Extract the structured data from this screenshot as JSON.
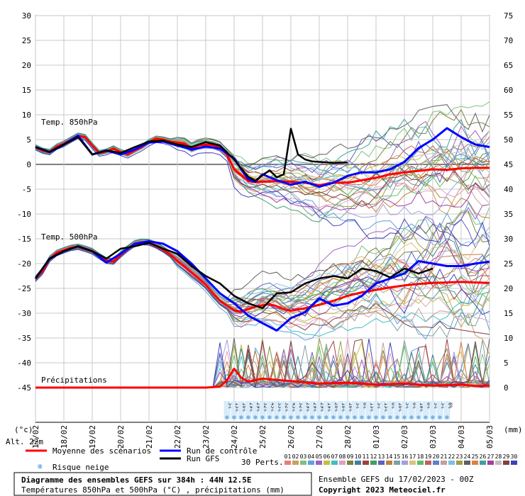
{
  "chart_data": {
    "type": "line",
    "title": "Diagramme des ensembles GEFS sur 384h : 44N 12.5E",
    "subtitle": "Températures 850hPa et 500hPa (°C) , précipitations (mm)",
    "run_info": "Ensemble GEFS du 17/02/2023 - 00Z",
    "copyright": "Copyright 2023 Meteociel.fr",
    "altitude": "Alt. 22m",
    "left_unit": "(°c)",
    "right_unit": "(mm)",
    "left_ticks": [
      30,
      25,
      20,
      15,
      10,
      5,
      0,
      -5,
      -10,
      -15,
      -20,
      -25,
      -30,
      -35,
      -40,
      -45
    ],
    "right_ticks": [
      75,
      70,
      65,
      60,
      55,
      50,
      45,
      40,
      35,
      30,
      25,
      20,
      15,
      10,
      5,
      0
    ],
    "ylim": [
      -45,
      30
    ],
    "precip_ylim": [
      0,
      75
    ],
    "x_dates": [
      "17/02",
      "18/02",
      "19/02",
      "20/02",
      "21/02",
      "22/02",
      "23/02",
      "24/02",
      "25/02",
      "26/02",
      "27/02",
      "28/02",
      "01/03",
      "02/03",
      "03/03",
      "04/03",
      "05/03"
    ],
    "panel_labels": {
      "t850": "Temp. 850hPa",
      "t500": "Temp. 500hPa",
      "precip": "Précipitations"
    },
    "snow_risk_pct": [
      "3%",
      "13%",
      "16%",
      "29%",
      "29%",
      "32%",
      "45%",
      "35%",
      "32%",
      "45%",
      "32%",
      "29%",
      "29%",
      "29%",
      "19%",
      "26%",
      "16%",
      "16%",
      "3%",
      "6%",
      "13%",
      "3%",
      "13%",
      "6%",
      "16%",
      "3%",
      "6%",
      "10%",
      "6%",
      "3%",
      "3%",
      "6%"
    ],
    "legend": {
      "mean": "Moyenne des scénarios",
      "control": "Run de contrôle",
      "gfs": "Run GFS",
      "snow": "Risque neige",
      "perts_label": "30 Perts.",
      "pert_numbers": [
        "01",
        "02",
        "03",
        "04",
        "05",
        "06",
        "07",
        "08",
        "09",
        "10",
        "11",
        "12",
        "13",
        "14",
        "15",
        "16",
        "17",
        "18",
        "19",
        "20",
        "21",
        "22",
        "23",
        "24",
        "25",
        "26",
        "27",
        "28",
        "29",
        "30"
      ],
      "pert_colors": [
        "#e08080",
        "#c8a060",
        "#80c080",
        "#60a0e0",
        "#a060c0",
        "#c0c040",
        "#40c0c0",
        "#e0a0c0",
        "#808040",
        "#4080a0",
        "#a04040",
        "#40a060",
        "#6060c0",
        "#c08040",
        "#80a0a0",
        "#a0a0e0",
        "#e0c080",
        "#60c060",
        "#c06060",
        "#6080c0",
        "#c0a0a0",
        "#80c0e0",
        "#a0a040",
        "#606060",
        "#e08040",
        "#40a0a0",
        "#a040a0",
        "#c0c0c0",
        "#804040",
        "#4040c0"
      ],
      "mean_color": "#ff0000",
      "control_color": "#0000ff",
      "gfs_color": "#000000"
    },
    "series": [
      {
        "name": "Moyenne des scénarios",
        "panel": "t850",
        "x": [
          0,
          0.25,
          0.5,
          0.75,
          1,
          1.25,
          1.5,
          1.75,
          2,
          2.25,
          2.5,
          2.75,
          3,
          3.25,
          3.5,
          3.75,
          4,
          4.25,
          4.5,
          4.75,
          5,
          5.25,
          5.5,
          5.75,
          6,
          6.25,
          6.5,
          6.75,
          7,
          7.25,
          7.5,
          7.75,
          8,
          8.5,
          9,
          9.5,
          10,
          10.5,
          11,
          11.5,
          12,
          12.5,
          13,
          13.5,
          14,
          14.5,
          15,
          15.5,
          16
        ],
        "y": [
          3.5,
          2.8,
          2.5,
          3.6,
          4.2,
          5,
          5.8,
          5.5,
          3.8,
          2.3,
          2.6,
          3.2,
          2.5,
          2,
          2.8,
          3.5,
          4.5,
          5.2,
          5,
          4.6,
          4.4,
          4.2,
          3.2,
          3.8,
          4,
          3.9,
          3.4,
          2,
          -1,
          -2.2,
          -3.4,
          -3.6,
          -3.5,
          -3.4,
          -3.5,
          -3.7,
          -4.2,
          -3.7,
          -3.7,
          -3.2,
          -2.7,
          -2,
          -1.6,
          -1.3,
          -1,
          -1.1,
          -0.8,
          -0.7,
          -0.7
        ]
      },
      {
        "name": "Run de contrôle",
        "panel": "t850",
        "x": [
          0,
          0.5,
          1,
          1.5,
          2,
          2.5,
          3,
          3.5,
          4,
          4.5,
          5,
          5.5,
          6,
          6.5,
          7,
          7.25,
          7.5,
          7.75,
          8,
          8.5,
          9,
          9.5,
          10,
          10.5,
          11,
          11.5,
          12,
          12.5,
          13,
          13.5,
          14,
          14.5,
          15,
          15.5,
          16
        ],
        "y": [
          3.5,
          2.5,
          4,
          5.8,
          2,
          2.8,
          2,
          3,
          4.4,
          4.6,
          3.8,
          3,
          3.6,
          3.2,
          1.2,
          -1,
          -3,
          -3.5,
          -2,
          -3.2,
          -4.1,
          -3.5,
          -4.5,
          -3.7,
          -2.3,
          -1.6,
          -1.6,
          -1,
          0.5,
          3.3,
          5,
          7.3,
          5.5,
          4,
          3.5
        ]
      },
      {
        "name": "Run GFS",
        "panel": "t850",
        "x": [
          0,
          0.5,
          1,
          1.5,
          2,
          2.5,
          3,
          3.5,
          4,
          4.5,
          5,
          5.5,
          6,
          6.5,
          7,
          7.25,
          7.5,
          7.75,
          8,
          8.25,
          8.5,
          8.75,
          9,
          9.25,
          9.5,
          9.75,
          10,
          10.5,
          11
        ],
        "y": [
          3.5,
          2.5,
          4,
          5.5,
          2,
          2.8,
          2.3,
          3.5,
          4.6,
          4.8,
          4,
          3.5,
          4.5,
          3.8,
          1,
          -0.8,
          -2.5,
          -3.3,
          -2.2,
          -1.2,
          -2.6,
          -2,
          7.2,
          2,
          1,
          0.6,
          0.5,
          0.3,
          0.4
        ]
      },
      {
        "name": "Moyenne des scénarios",
        "panel": "t500",
        "x": [
          0,
          0.25,
          0.5,
          0.75,
          1,
          1.25,
          1.5,
          1.75,
          2,
          2.25,
          2.5,
          2.75,
          3,
          3.25,
          3.5,
          3.75,
          4,
          4.25,
          4.5,
          4.75,
          5,
          5.25,
          5.5,
          5.75,
          6,
          6.25,
          6.5,
          6.75,
          7,
          7.25,
          7.5,
          7.75,
          8,
          8.25,
          8.5,
          8.75,
          9,
          9.5,
          10,
          10.5,
          11,
          11.5,
          12,
          12.5,
          13,
          13.5,
          14,
          14.5,
          15,
          15.5,
          16
        ],
        "y": [
          -23,
          -21.5,
          -19,
          -17.8,
          -17.3,
          -16.8,
          -16.6,
          -17,
          -17.5,
          -18.5,
          -19.4,
          -19.6,
          -18.2,
          -17,
          -16,
          -15.7,
          -15.8,
          -16.4,
          -17.2,
          -18.2,
          -19.5,
          -20.6,
          -21.8,
          -23,
          -24.3,
          -26,
          -27.5,
          -28.5,
          -29.4,
          -29.7,
          -29.2,
          -28.7,
          -28.4,
          -28.2,
          -28.6,
          -29.2,
          -29.5,
          -29,
          -28.3,
          -27.5,
          -26.5,
          -25.8,
          -25.3,
          -24.8,
          -24.4,
          -24.1,
          -23.9,
          -23.8,
          -23.7,
          -23.8,
          -23.9
        ]
      },
      {
        "name": "Run de contrôle",
        "panel": "t500",
        "x": [
          0,
          0.5,
          1,
          1.5,
          2,
          2.5,
          3,
          3.5,
          4,
          4.5,
          5,
          5.5,
          6,
          6.5,
          7,
          7.5,
          8,
          8.5,
          9,
          9.5,
          10,
          10.5,
          11,
          11.5,
          12,
          12.5,
          13,
          13.5,
          14,
          14.5,
          15,
          15.5,
          16
        ],
        "y": [
          -23,
          -19,
          -17.5,
          -16.5,
          -17.5,
          -19.8,
          -18,
          -16,
          -15.5,
          -16,
          -17.5,
          -20,
          -23,
          -26,
          -28,
          -30.5,
          -32,
          -33.5,
          -31,
          -29.8,
          -27,
          -28.5,
          -28,
          -26.5,
          -24,
          -23,
          -22,
          -19.5,
          -20,
          -20.5,
          -20.5,
          -20,
          -19.6
        ]
      },
      {
        "name": "Run GFS",
        "panel": "t500",
        "x": [
          0,
          0.5,
          1,
          1.5,
          2,
          2.5,
          3,
          3.5,
          4,
          4.5,
          5,
          5.5,
          6,
          6.5,
          7,
          7.5,
          8,
          8.5,
          9,
          9.5,
          10,
          10.5,
          11,
          11.5,
          12,
          12.5,
          13,
          13.5,
          14
        ],
        "y": [
          -23,
          -19,
          -17.5,
          -16.5,
          -17.5,
          -19,
          -17,
          -16.5,
          -15.8,
          -17,
          -18,
          -20.5,
          -22.5,
          -24,
          -26.5,
          -28,
          -29,
          -26,
          -25.8,
          -24,
          -23,
          -22.5,
          -23,
          -21,
          -21.5,
          -22.8,
          -21,
          -22,
          -21
        ]
      },
      {
        "name": "Moyenne des scénarios",
        "panel": "precip",
        "x": [
          0,
          1,
          2,
          3,
          4,
          5,
          6,
          6.5,
          6.75,
          7,
          7.25,
          7.5,
          8,
          9,
          10,
          11,
          12,
          13,
          14,
          15,
          15.5,
          16
        ],
        "y": [
          0,
          0,
          0,
          0,
          0,
          0,
          0,
          0.2,
          1.5,
          3.8,
          2,
          1.2,
          1.8,
          1.3,
          0.8,
          1,
          0.6,
          0.8,
          0.4,
          0.6,
          0.3,
          0.4
        ]
      }
    ]
  }
}
